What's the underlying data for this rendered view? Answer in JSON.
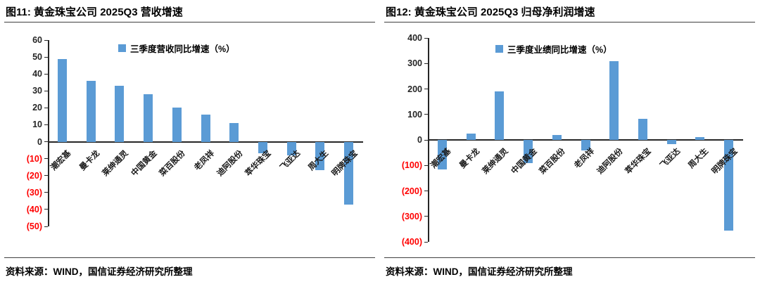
{
  "colors": {
    "bar_blue": "#5B9BD5",
    "negative_axis_label": "#FF0000",
    "axis_black": "#262626"
  },
  "chart_data": [
    {
      "type": "bar",
      "title": "图11: 黄金珠宝公司 2025Q3 营收增速",
      "legend": "三季度营收同比增速（%）",
      "legend_position": "top-center",
      "source": "资料来源：WIND，国信证券经济研究所整理",
      "categories": [
        "潮宏基",
        "曼卡龙",
        "莱绅通灵",
        "中国黄金",
        "菜百股份",
        "老凤祥",
        "迪阿股份",
        "萃华珠宝",
        "飞亚达",
        "周大生",
        "明牌珠宝"
      ],
      "values": [
        49,
        36,
        33,
        28,
        20,
        16,
        11,
        -7,
        -8,
        -17,
        -37
      ],
      "xlabel": "",
      "ylabel": "",
      "ylim": [
        -50,
        60
      ],
      "ytick_step": 10,
      "negative_tick_format": "parentheses-red",
      "grid": false,
      "bar_color": "#5B9BD5"
    },
    {
      "type": "bar",
      "title": "图12: 黄金珠宝公司 2025Q3 归母净利润增速",
      "legend": "三季度业绩同比增速（%）",
      "legend_position": "top-center",
      "source": "资料来源：WIND，国信证券经济研究所整理",
      "categories": [
        "潮宏基",
        "曼卡龙",
        "莱绅通灵",
        "中国黄金",
        "菜百股份",
        "老凤祥",
        "迪阿股份",
        "萃华珠宝",
        "飞亚达",
        "周大生",
        "明牌珠宝"
      ],
      "values": [
        -115,
        25,
        190,
        -90,
        20,
        -40,
        310,
        83,
        -17,
        12,
        -355
      ],
      "xlabel": "",
      "ylabel": "",
      "ylim": [
        -400,
        400
      ],
      "ytick_step": 100,
      "negative_tick_format": "parentheses-red",
      "grid": false,
      "bar_color": "#5B9BD5"
    }
  ]
}
